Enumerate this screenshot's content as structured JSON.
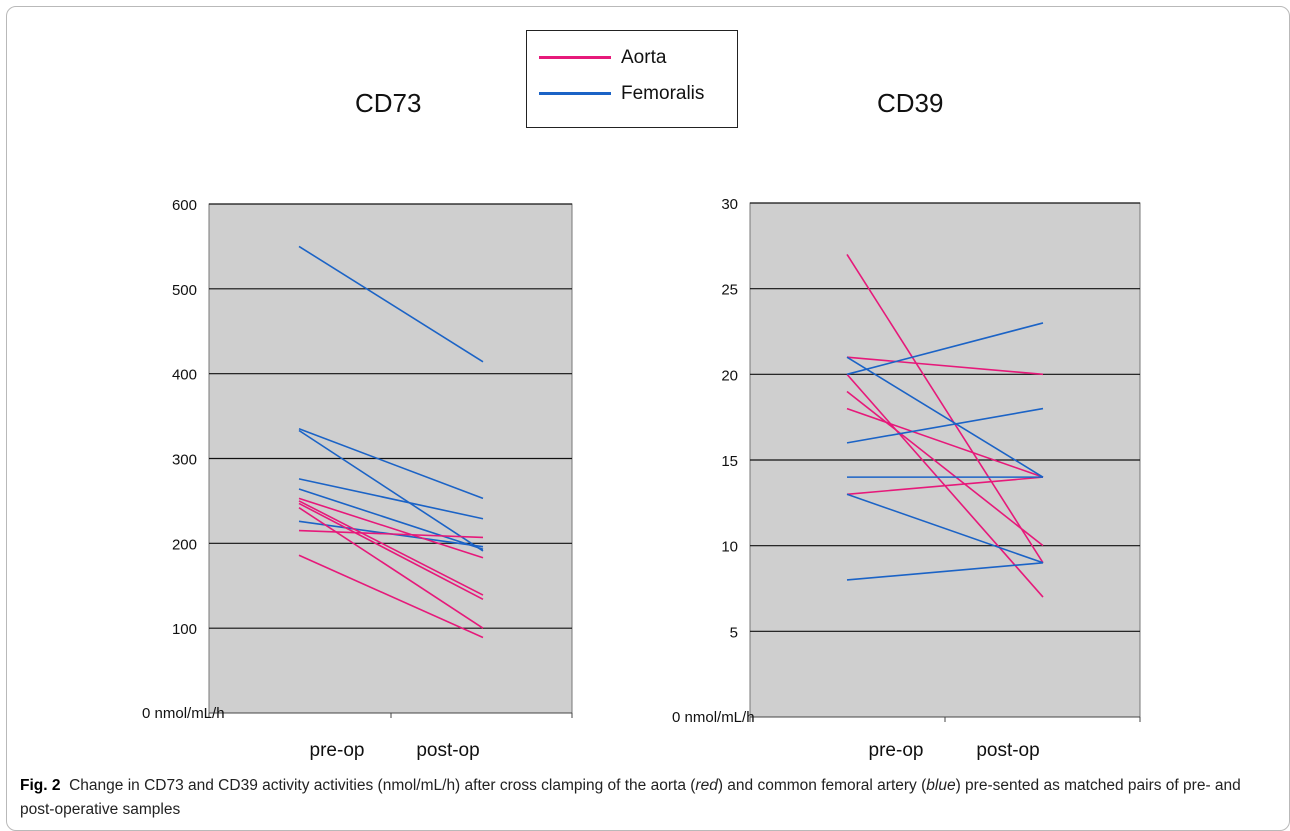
{
  "legend": [
    {
      "label": "Aorta",
      "color": "#e6197a"
    },
    {
      "label": "Femoralis",
      "color": "#1b63c6"
    }
  ],
  "caption": {
    "label": "Fig. 2",
    "text_1": "Change in CD73 and CD39 activity activities (nmol/mL/h) after cross clamping of the aorta (",
    "em_1": "red",
    "text_2": ") and common femoral artery (",
    "em_2": "blue",
    "text_3": ") pre-sented as matched pairs of pre- and post-operative samples"
  },
  "colors": {
    "plot_background": "#cfcfcf",
    "gridline": "#111111"
  },
  "chart_data": [
    {
      "type": "line",
      "title": "CD73",
      "categories": [
        "pre-op",
        "post-op"
      ],
      "ylim": [
        0,
        600
      ],
      "yticks": [
        100,
        200,
        300,
        400,
        500,
        600
      ],
      "zero_label": "0 nmol/mL/h",
      "grid": true,
      "series": [
        {
          "group": "Femoralis",
          "values": [
            550,
            414
          ]
        },
        {
          "group": "Femoralis",
          "values": [
            335,
            253
          ]
        },
        {
          "group": "Femoralis",
          "values": [
            333,
            191
          ]
        },
        {
          "group": "Femoralis",
          "values": [
            276,
            229
          ]
        },
        {
          "group": "Femoralis",
          "values": [
            264,
            193
          ]
        },
        {
          "group": "Femoralis",
          "values": [
            226,
            196
          ]
        },
        {
          "group": "Aorta",
          "values": [
            253,
            183
          ]
        },
        {
          "group": "Aorta",
          "values": [
            250,
            139
          ]
        },
        {
          "group": "Aorta",
          "values": [
            247,
            134
          ]
        },
        {
          "group": "Aorta",
          "values": [
            242,
            100
          ]
        },
        {
          "group": "Aorta",
          "values": [
            215,
            207
          ]
        },
        {
          "group": "Aorta",
          "values": [
            186,
            89
          ]
        }
      ]
    },
    {
      "type": "line",
      "title": "CD39",
      "categories": [
        "pre-op",
        "post-op"
      ],
      "ylim": [
        0,
        30
      ],
      "yticks": [
        5,
        10,
        15,
        20,
        25,
        30
      ],
      "zero_label": "0 nmol/mL/h",
      "grid": true,
      "series": [
        {
          "group": "Aorta",
          "values": [
            27,
            9
          ]
        },
        {
          "group": "Aorta",
          "values": [
            21,
            20
          ]
        },
        {
          "group": "Aorta",
          "values": [
            20,
            7
          ]
        },
        {
          "group": "Aorta",
          "values": [
            19,
            10
          ]
        },
        {
          "group": "Aorta",
          "values": [
            18,
            14
          ]
        },
        {
          "group": "Aorta",
          "values": [
            13,
            14
          ]
        },
        {
          "group": "Femoralis",
          "values": [
            21,
            14
          ]
        },
        {
          "group": "Femoralis",
          "values": [
            20,
            23
          ]
        },
        {
          "group": "Femoralis",
          "values": [
            16,
            18
          ]
        },
        {
          "group": "Femoralis",
          "values": [
            14,
            14
          ]
        },
        {
          "group": "Femoralis",
          "values": [
            13,
            9
          ]
        },
        {
          "group": "Femoralis",
          "values": [
            8,
            9
          ]
        }
      ]
    }
  ]
}
